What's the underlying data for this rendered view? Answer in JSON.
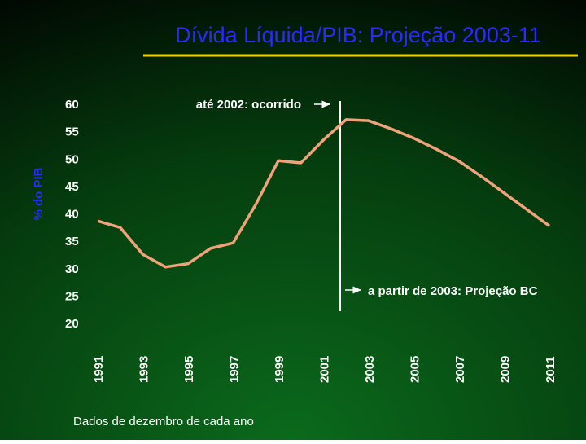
{
  "chart_data": {
    "type": "line",
    "title": "Dívida Líquida/PIB: Projeção 2003-11",
    "y_label": "% do PIB",
    "annotations": [
      "até 2002: ocorrido",
      "a partir de 2003: Projeção BC"
    ],
    "footnote": "Dados de dezembro de cada ano",
    "x": [
      1991,
      1992,
      1993,
      1994,
      1995,
      1996,
      1997,
      1998,
      1999,
      2000,
      2001,
      2002,
      2003,
      2004,
      2005,
      2006,
      2007,
      2008,
      2009,
      2010,
      2011
    ],
    "series": [
      {
        "name": "% do PIB",
        "color": "#f0a27a",
        "values": [
          38.7,
          37.5,
          32.6,
          30.3,
          30.9,
          33.7,
          34.7,
          41.7,
          49.7,
          49.3,
          53.5,
          57.2,
          57.0,
          55.5,
          53.8,
          51.8,
          49.6,
          46.8,
          43.8,
          40.8,
          37.8
        ]
      }
    ],
    "xlim": [
      1991,
      2011
    ],
    "xticks": [
      1991,
      1993,
      1995,
      1997,
      1999,
      2001,
      2003,
      2005,
      2007,
      2009,
      2011
    ],
    "ylim": [
      20,
      60
    ],
    "yticks": [
      20,
      25,
      30,
      35,
      40,
      45,
      50,
      55,
      60
    ]
  }
}
